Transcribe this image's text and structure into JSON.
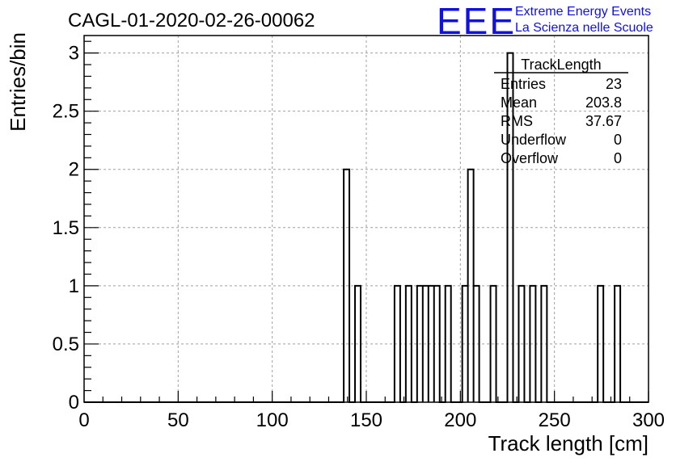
{
  "chart_data": {
    "type": "bar",
    "title": "CAGL-01-2020-02-26-00062",
    "xlabel": "Track length [cm]",
    "ylabel": "Entries/bin",
    "xlim": [
      0,
      300
    ],
    "ylim": [
      0,
      3.15
    ],
    "grid": true,
    "bin_width": 3,
    "x_ticks": [
      0,
      50,
      100,
      150,
      200,
      250,
      300
    ],
    "x_tick_labels": [
      "0",
      "50",
      "100",
      "150",
      "200",
      "250",
      "300"
    ],
    "y_ticks": [
      0,
      0.5,
      1,
      1.5,
      2,
      2.5,
      3
    ],
    "y_tick_labels": [
      "0",
      "0.5",
      "1",
      "1.5",
      "2",
      "2.5",
      "3"
    ],
    "bins": [
      {
        "x": 138,
        "value": 2
      },
      {
        "x": 144,
        "value": 1
      },
      {
        "x": 165,
        "value": 1
      },
      {
        "x": 171,
        "value": 1
      },
      {
        "x": 177,
        "value": 1
      },
      {
        "x": 180,
        "value": 1
      },
      {
        "x": 183,
        "value": 1
      },
      {
        "x": 186,
        "value": 1
      },
      {
        "x": 192,
        "value": 1
      },
      {
        "x": 201,
        "value": 1
      },
      {
        "x": 204,
        "value": 2
      },
      {
        "x": 207,
        "value": 1
      },
      {
        "x": 216,
        "value": 1
      },
      {
        "x": 225,
        "value": 3
      },
      {
        "x": 231,
        "value": 1
      },
      {
        "x": 237,
        "value": 1
      },
      {
        "x": 243,
        "value": 1
      },
      {
        "x": 273,
        "value": 1
      },
      {
        "x": 282,
        "value": 1
      }
    ],
    "stats_box": {
      "name": "TrackLength",
      "placement": "top-right",
      "rows": [
        {
          "label": "Entries",
          "value": "23"
        },
        {
          "label": "Mean",
          "value": "203.8"
        },
        {
          "label": "RMS",
          "value": "37.67"
        },
        {
          "label": "Underflow",
          "value": "0"
        },
        {
          "label": "Overflow",
          "value": "0"
        }
      ]
    }
  },
  "logo": {
    "text": "EEE",
    "line1": "Extreme Energy Events",
    "line2": "La Scienza nelle Scuole",
    "color": "#1010e0"
  },
  "colors": {
    "histogram_line": "#000000",
    "grid": "#a0a0a0",
    "axis": "#000000"
  }
}
